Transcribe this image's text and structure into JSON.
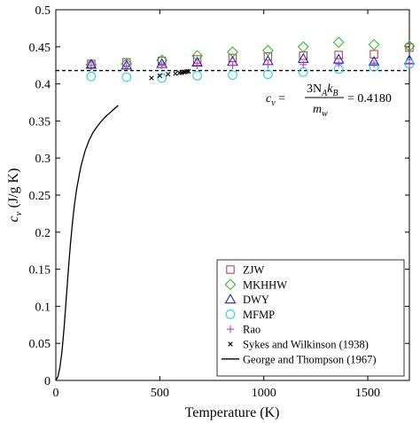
{
  "chart_data": {
    "type": "scatter",
    "title": "",
    "xlabel": "Temperature (K)",
    "ylabel_main": "c",
    "ylabel_sub": "v",
    "ylabel_unit": "(J/g K)",
    "xlim": [
      0,
      1700
    ],
    "ylim": [
      0,
      0.5
    ],
    "xticks": [
      0,
      500,
      1000,
      1500
    ],
    "yticks": [
      0,
      0.05,
      0.1,
      0.15,
      0.2,
      0.25,
      0.3,
      0.35,
      0.4,
      0.45,
      0.5
    ],
    "xtick_labels": [
      "0",
      "500",
      "1000",
      "1500"
    ],
    "ytick_labels": [
      "0",
      "0.05",
      "0.1",
      "0.15",
      "0.2",
      "0.25",
      "0.3",
      "0.35",
      "0.4",
      "0.45",
      "0.5"
    ],
    "grid": false,
    "legend_position": "bottom-right",
    "reference_line": {
      "y": 0.418,
      "style": "dashed"
    },
    "annotation": {
      "lhs": "c",
      "lhs_sub": "v",
      "numerator": "3N",
      "numerator_sub": "A",
      "numerator_tail": "k",
      "numerator_tail_sub": "B",
      "denominator": "m",
      "denominator_sub": "w",
      "value": "= 0.4180"
    },
    "series": [
      {
        "name": "ZJW",
        "marker": "square",
        "color": "#c0404a",
        "x": [
          170,
          340,
          510,
          680,
          850,
          1020,
          1190,
          1360,
          1530,
          1700
        ],
        "y": [
          0.427,
          0.429,
          0.431,
          0.433,
          0.435,
          0.437,
          0.438,
          0.439,
          0.44,
          0.449
        ]
      },
      {
        "name": "MKHHW",
        "marker": "diamond",
        "color": "#33bb33",
        "x": [
          170,
          340,
          510,
          680,
          850,
          1020,
          1190,
          1360,
          1530,
          1700
        ],
        "y": [
          0.426,
          0.427,
          0.432,
          0.438,
          0.443,
          0.445,
          0.45,
          0.456,
          0.453,
          0.451
        ]
      },
      {
        "name": "DWY",
        "marker": "triangle",
        "color": "#2222bb",
        "x": [
          170,
          340,
          510,
          680,
          850,
          1020,
          1190,
          1360,
          1530,
          1700
        ],
        "y": [
          0.426,
          0.425,
          0.427,
          0.429,
          0.43,
          0.431,
          0.434,
          0.433,
          0.43,
          0.432
        ]
      },
      {
        "name": "MFMP",
        "marker": "circle",
        "color": "#22d4e0",
        "x": [
          170,
          340,
          510,
          680,
          850,
          1020,
          1190,
          1360,
          1530,
          1700
        ],
        "y": [
          0.41,
          0.409,
          0.408,
          0.411,
          0.412,
          0.413,
          0.416,
          0.42,
          0.423,
          0.427
        ]
      },
      {
        "name": "Rao",
        "marker": "plus",
        "color": "#cc33cc",
        "x": [
          170,
          340,
          510,
          680,
          850,
          1020,
          1190,
          1360,
          1530,
          1700
        ],
        "y": [
          0.425,
          0.424,
          0.425,
          0.425,
          0.425,
          0.426,
          0.426,
          0.427,
          0.427,
          0.428
        ]
      },
      {
        "name": "Sykes and Wilkinson (1938)",
        "marker": "x",
        "color": "#000000",
        "x": [
          460,
          500,
          540,
          575,
          595,
          605,
          615,
          622,
          630,
          638
        ],
        "y": [
          0.408,
          0.411,
          0.413,
          0.414,
          0.415,
          0.415,
          0.416,
          0.416,
          0.417,
          0.417
        ]
      },
      {
        "name": "George and Thompson (1967)",
        "marker": "line",
        "color": "#000000",
        "x": [
          0,
          10,
          20,
          30,
          40,
          50,
          60,
          70,
          80,
          90,
          100,
          120,
          140,
          160,
          180,
          200,
          220,
          240,
          260,
          280,
          300
        ],
        "y": [
          0,
          0.005,
          0.018,
          0.04,
          0.072,
          0.11,
          0.148,
          0.183,
          0.213,
          0.238,
          0.258,
          0.288,
          0.309,
          0.324,
          0.335,
          0.343,
          0.35,
          0.356,
          0.361,
          0.366,
          0.371
        ]
      }
    ]
  }
}
